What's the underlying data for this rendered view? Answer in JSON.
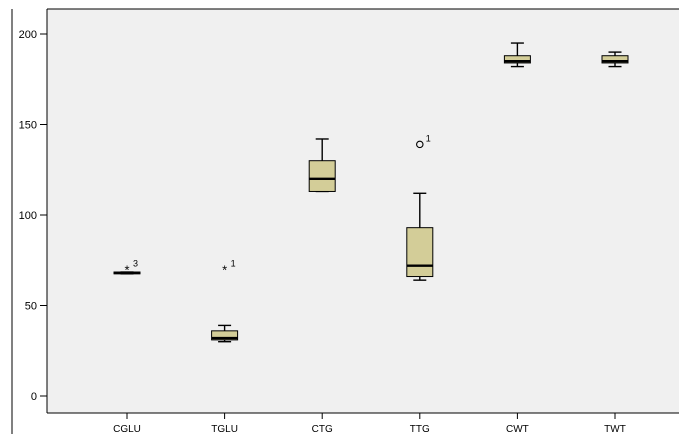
{
  "chart_data": {
    "type": "boxplot",
    "title": "",
    "xlabel": "",
    "ylabel": "",
    "ylim": [
      0,
      210
    ],
    "yticks": [
      0,
      50,
      100,
      150,
      200
    ],
    "grid": false,
    "categories": [
      "CGLU",
      "TGLU",
      "CTG",
      "TTG",
      "CWT",
      "TWT"
    ],
    "boxes": [
      {
        "category": "CGLU",
        "whisker_low": 67.5,
        "q1": 67.5,
        "median": 68,
        "q3": 68.5,
        "whisker_high": 68.5
      },
      {
        "category": "TGLU",
        "whisker_low": 30,
        "q1": 31,
        "median": 32,
        "q3": 36,
        "whisker_high": 39
      },
      {
        "category": "CTG",
        "whisker_low": 113,
        "q1": 113,
        "median": 120,
        "q3": 130,
        "whisker_high": 142
      },
      {
        "category": "TTG",
        "whisker_low": 64,
        "q1": 66,
        "median": 72,
        "q3": 93,
        "whisker_high": 112
      },
      {
        "category": "CWT",
        "whisker_low": 182,
        "q1": 184,
        "median": 185,
        "q3": 188,
        "whisker_high": 195
      },
      {
        "category": "TWT",
        "whisker_low": 182,
        "q1": 184,
        "median": 185,
        "q3": 188,
        "whisker_high": 190
      }
    ],
    "outliers": [
      {
        "category": "CGLU",
        "value": 70,
        "marker": "star",
        "label": "3"
      },
      {
        "category": "TGLU",
        "value": 70,
        "marker": "star",
        "label": "1"
      },
      {
        "category": "TTG",
        "value": 139,
        "marker": "circle",
        "label": "1"
      }
    ]
  },
  "colors": {
    "plot_background": "#f0f0f0",
    "box_fill": "#d3cd98",
    "line": "#000000",
    "text": "#000000"
  }
}
